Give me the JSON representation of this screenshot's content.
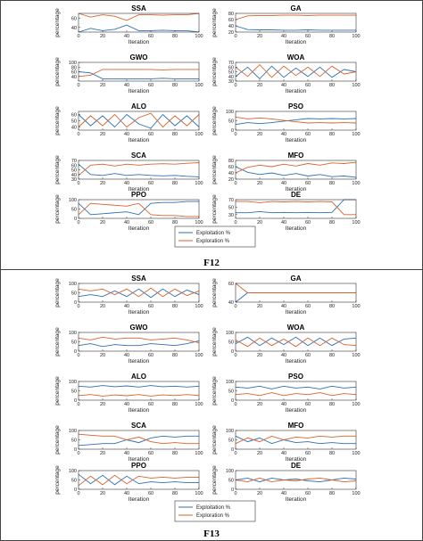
{
  "colors": {
    "exploitation": "#2e6fb3",
    "exploration": "#d9622b",
    "axis": "#333333"
  },
  "legend": {
    "exploitation": "Exploitation %",
    "exploration": "Exploration %"
  },
  "labels": {
    "y": "percentage",
    "x": "Iteration"
  },
  "chart_data": [
    {
      "figure": "F12",
      "type": "line",
      "x_ticks": [
        0,
        20,
        40,
        60,
        80,
        100
      ],
      "xlim": [
        0,
        100
      ],
      "panels": [
        {
          "title": "SSA",
          "ylim": [
            30,
            70
          ],
          "yticks": [
            40,
            60
          ],
          "sample_x": [
            0,
            10,
            20,
            30,
            40,
            50,
            60,
            70,
            80,
            90,
            100
          ],
          "exploitation": [
            30,
            38,
            33,
            36,
            45,
            33,
            33,
            34,
            33,
            33,
            30
          ],
          "exploration": [
            70,
            62,
            67,
            64,
            55,
            67,
            67,
            66,
            67,
            67,
            70
          ]
        },
        {
          "title": "GA",
          "ylim": [
            20,
            80
          ],
          "yticks": [
            20,
            40,
            60,
            80
          ],
          "sample_x": [
            0,
            10,
            20,
            30,
            40,
            50,
            60,
            70,
            80,
            90,
            100
          ],
          "exploitation": [
            40,
            28,
            27,
            27,
            26,
            26,
            27,
            26,
            26,
            26,
            26
          ],
          "exploration": [
            60,
            72,
            73,
            73,
            74,
            74,
            73,
            74,
            74,
            74,
            74
          ]
        },
        {
          "title": "GWO",
          "ylim": [
            20,
            100
          ],
          "yticks": [
            40,
            60,
            80,
            100
          ],
          "sample_x": [
            0,
            10,
            20,
            30,
            40,
            50,
            60,
            70,
            80,
            90,
            100
          ],
          "exploitation": [
            60,
            55,
            30,
            30,
            30,
            30,
            30,
            32,
            30,
            30,
            30
          ],
          "exploration": [
            40,
            45,
            70,
            70,
            70,
            70,
            70,
            68,
            70,
            70,
            70
          ]
        },
        {
          "title": "WOA",
          "ylim": [
            30,
            70
          ],
          "yticks": [
            30,
            40,
            50,
            60,
            70
          ],
          "sample_x": [
            0,
            10,
            20,
            30,
            40,
            50,
            60,
            70,
            80,
            90,
            100
          ],
          "exploitation": [
            40,
            60,
            35,
            62,
            38,
            58,
            40,
            60,
            38,
            55,
            50
          ],
          "exploration": [
            60,
            40,
            65,
            38,
            62,
            42,
            60,
            40,
            62,
            45,
            50
          ]
        },
        {
          "title": "ALO",
          "ylim": [
            35,
            65
          ],
          "yticks": [
            40,
            50,
            60
          ],
          "sample_x": [
            0,
            10,
            20,
            30,
            40,
            50,
            60,
            70,
            80,
            90,
            100
          ],
          "exploitation": [
            60,
            42,
            58,
            40,
            60,
            45,
            38,
            60,
            42,
            58,
            40
          ],
          "exploration": [
            40,
            58,
            42,
            60,
            40,
            55,
            62,
            40,
            58,
            42,
            60
          ]
        },
        {
          "title": "PSO",
          "ylim": [
            0,
            100
          ],
          "yticks": [
            0,
            50,
            100
          ],
          "sample_x": [
            0,
            10,
            20,
            30,
            40,
            50,
            60,
            70,
            80,
            90,
            100
          ],
          "exploitation": [
            30,
            40,
            35,
            40,
            48,
            55,
            62,
            60,
            62,
            60,
            62
          ],
          "exploration": [
            70,
            60,
            65,
            60,
            52,
            45,
            38,
            40,
            38,
            40,
            38
          ]
        },
        {
          "title": "SCA",
          "ylim": [
            30,
            70
          ],
          "yticks": [
            30,
            40,
            50,
            60,
            70
          ],
          "sample_x": [
            0,
            10,
            20,
            30,
            40,
            50,
            60,
            70,
            80,
            90,
            100
          ],
          "exploitation": [
            62,
            40,
            38,
            42,
            38,
            40,
            38,
            37,
            38,
            36,
            35
          ],
          "exploration": [
            38,
            60,
            62,
            58,
            62,
            60,
            62,
            63,
            62,
            64,
            65
          ]
        },
        {
          "title": "MFO",
          "ylim": [
            20,
            80
          ],
          "yticks": [
            20,
            40,
            60,
            80
          ],
          "sample_x": [
            0,
            10,
            20,
            30,
            40,
            50,
            60,
            70,
            80,
            90,
            100
          ],
          "exploitation": [
            60,
            42,
            35,
            40,
            32,
            38,
            30,
            35,
            28,
            30,
            26
          ],
          "exploration": [
            40,
            58,
            65,
            60,
            68,
            62,
            70,
            65,
            72,
            70,
            74
          ]
        },
        {
          "title": "PPO",
          "ylim": [
            0,
            100
          ],
          "yticks": [
            0,
            50,
            100
          ],
          "sample_x": [
            0,
            10,
            20,
            30,
            40,
            50,
            60,
            70,
            80,
            90,
            100
          ],
          "exploitation": [
            80,
            20,
            25,
            30,
            35,
            20,
            80,
            85,
            85,
            90,
            90
          ],
          "exploration": [
            20,
            80,
            75,
            70,
            65,
            80,
            20,
            15,
            15,
            10,
            10
          ]
        },
        {
          "title": "DE",
          "ylim": [
            20,
            70
          ],
          "yticks": [
            30,
            50,
            70
          ],
          "sample_x": [
            0,
            10,
            20,
            30,
            40,
            50,
            60,
            70,
            80,
            90,
            100
          ],
          "exploitation": [
            35,
            35,
            38,
            35,
            36,
            35,
            36,
            35,
            36,
            70,
            70
          ],
          "exploration": [
            65,
            65,
            62,
            65,
            64,
            65,
            64,
            65,
            64,
            30,
            30
          ]
        }
      ]
    },
    {
      "figure": "F13",
      "type": "line",
      "x_ticks": [
        0,
        20,
        40,
        60,
        80,
        100
      ],
      "xlim": [
        0,
        100
      ],
      "panels": [
        {
          "title": "SSA",
          "ylim": [
            0,
            100
          ],
          "yticks": [
            0,
            50,
            100
          ],
          "sample_x": [
            0,
            10,
            20,
            30,
            40,
            50,
            60,
            70,
            80,
            90,
            100
          ],
          "exploitation": [
            30,
            40,
            30,
            60,
            30,
            70,
            25,
            70,
            30,
            65,
            40
          ],
          "exploration": [
            70,
            60,
            70,
            40,
            70,
            30,
            75,
            30,
            70,
            35,
            60
          ]
        },
        {
          "title": "GA",
          "ylim": [
            40,
            60
          ],
          "yticks": [
            40,
            60
          ],
          "sample_x": [
            0,
            10,
            20,
            30,
            40,
            50,
            60,
            70,
            80,
            90,
            100
          ],
          "exploitation": [
            40,
            50,
            50,
            50,
            50,
            50,
            50,
            50,
            50,
            50,
            50
          ],
          "exploration": [
            60,
            50,
            50,
            50,
            50,
            50,
            50,
            50,
            50,
            50,
            50
          ]
        },
        {
          "title": "GWO",
          "ylim": [
            0,
            100
          ],
          "yticks": [
            0,
            50,
            100
          ],
          "sample_x": [
            0,
            10,
            20,
            30,
            40,
            50,
            60,
            70,
            80,
            90,
            100
          ],
          "exploitation": [
            30,
            40,
            25,
            35,
            30,
            30,
            40,
            35,
            30,
            40,
            55
          ],
          "exploration": [
            70,
            60,
            75,
            65,
            70,
            70,
            60,
            65,
            70,
            60,
            45
          ]
        },
        {
          "title": "WOA",
          "ylim": [
            0,
            100
          ],
          "yticks": [
            0,
            50,
            100
          ],
          "sample_x": [
            0,
            10,
            20,
            30,
            40,
            50,
            60,
            70,
            80,
            90,
            100
          ],
          "exploitation": [
            40,
            75,
            30,
            70,
            35,
            75,
            30,
            70,
            30,
            65,
            70
          ],
          "exploration": [
            60,
            25,
            70,
            30,
            65,
            25,
            70,
            30,
            70,
            35,
            30
          ]
        },
        {
          "title": "ALO",
          "ylim": [
            0,
            100
          ],
          "yticks": [
            0,
            50,
            100
          ],
          "sample_x": [
            0,
            10,
            20,
            30,
            40,
            50,
            60,
            70,
            80,
            90,
            100
          ],
          "exploitation": [
            75,
            70,
            78,
            72,
            76,
            70,
            78,
            72,
            75,
            70,
            75
          ],
          "exploration": [
            25,
            30,
            22,
            28,
            24,
            30,
            22,
            28,
            25,
            30,
            25
          ]
        },
        {
          "title": "PSO",
          "ylim": [
            0,
            100
          ],
          "yticks": [
            0,
            50,
            100
          ],
          "sample_x": [
            0,
            10,
            20,
            30,
            40,
            50,
            60,
            70,
            80,
            90,
            100
          ],
          "exploitation": [
            70,
            65,
            75,
            60,
            75,
            65,
            70,
            60,
            75,
            65,
            70
          ],
          "exploration": [
            30,
            35,
            25,
            40,
            25,
            35,
            30,
            40,
            25,
            35,
            30
          ]
        },
        {
          "title": "SCA",
          "ylim": [
            0,
            100
          ],
          "yticks": [
            0,
            50,
            100
          ],
          "sample_x": [
            0,
            10,
            20,
            30,
            40,
            50,
            60,
            70,
            80,
            90,
            100
          ],
          "exploitation": [
            20,
            25,
            30,
            30,
            50,
            35,
            60,
            70,
            65,
            70,
            70
          ],
          "exploration": [
            80,
            75,
            70,
            70,
            50,
            65,
            40,
            30,
            35,
            30,
            30
          ]
        },
        {
          "title": "MFO",
          "ylim": [
            0,
            100
          ],
          "yticks": [
            0,
            50,
            100
          ],
          "sample_x": [
            0,
            10,
            20,
            30,
            40,
            50,
            60,
            70,
            80,
            90,
            100
          ],
          "exploitation": [
            70,
            40,
            60,
            30,
            50,
            35,
            40,
            30,
            35,
            30,
            30
          ],
          "exploration": [
            30,
            60,
            40,
            70,
            50,
            65,
            60,
            70,
            65,
            70,
            70
          ]
        },
        {
          "title": "PPO",
          "ylim": [
            0,
            100
          ],
          "yticks": [
            0,
            50,
            100
          ],
          "sample_x": [
            0,
            10,
            20,
            30,
            40,
            50,
            60,
            70,
            80,
            90,
            100
          ],
          "exploitation": [
            80,
            30,
            75,
            25,
            70,
            30,
            40,
            35,
            40,
            35,
            35
          ],
          "exploration": [
            20,
            70,
            25,
            75,
            30,
            70,
            60,
            65,
            60,
            65,
            65
          ]
        },
        {
          "title": "DE",
          "ylim": [
            0,
            100
          ],
          "yticks": [
            0,
            50,
            100
          ],
          "sample_x": [
            0,
            10,
            20,
            30,
            40,
            50,
            60,
            70,
            80,
            90,
            100
          ],
          "exploitation": [
            50,
            60,
            40,
            60,
            50,
            55,
            45,
            40,
            50,
            60,
            55
          ],
          "exploration": [
            50,
            40,
            60,
            40,
            50,
            45,
            55,
            60,
            50,
            40,
            45
          ]
        }
      ]
    }
  ]
}
